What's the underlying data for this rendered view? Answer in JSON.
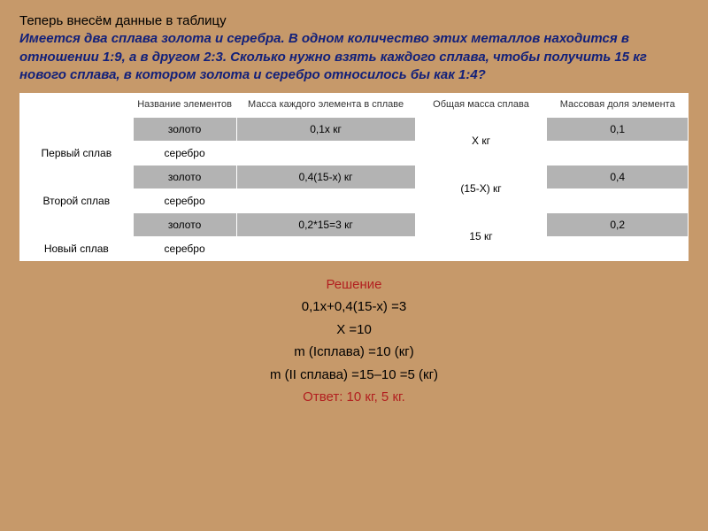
{
  "intro": "Теперь внесём данные в таблицу",
  "problem": "Имеется два сплава золота и серебра. В одном количество этих металлов находится в отношении 1:9, а в другом 2:3. Сколько нужно взять каждого сплава, чтобы получить 15 кг нового сплава, в котором золота и серебро относилось бы как 1:4?",
  "headers": {
    "col1": "",
    "col2": "Название элементов",
    "col3": "Масса каждого элемента в сплаве",
    "col4": "Общая масса сплава",
    "col5": "Массовая доля элемента"
  },
  "rows": {
    "alloy1": {
      "label": "Первый сплав",
      "gold": "золото",
      "silver": "серебро",
      "gold_mass": "0,1х кг",
      "total_mass": "Х кг",
      "fraction": "0,1"
    },
    "alloy2": {
      "label": "Второй сплав",
      "gold": "золото",
      "silver": "серебро",
      "gold_mass": "0,4(15-х) кг",
      "total_mass": "(15-Х) кг",
      "fraction": "0,4"
    },
    "alloy3": {
      "label": "Новый сплав",
      "gold": "золото",
      "silver": "серебро",
      "gold_mass": "0,2*15=3 кг",
      "total_mass": "15 кг",
      "fraction": "0,2"
    }
  },
  "solution": {
    "title": "Решение",
    "eq": "0,1х+0,4(15-х) =3",
    "x": "Х =10",
    "m1": "m (Iсплава) =10 (кг)",
    "m2": "m (II сплава) =15–10 =5 (кг)",
    "answer": "Ответ: 10 кг,  5 кг."
  },
  "colwidths": [
    "120px",
    "110px",
    "190px",
    "140px",
    "150px"
  ]
}
